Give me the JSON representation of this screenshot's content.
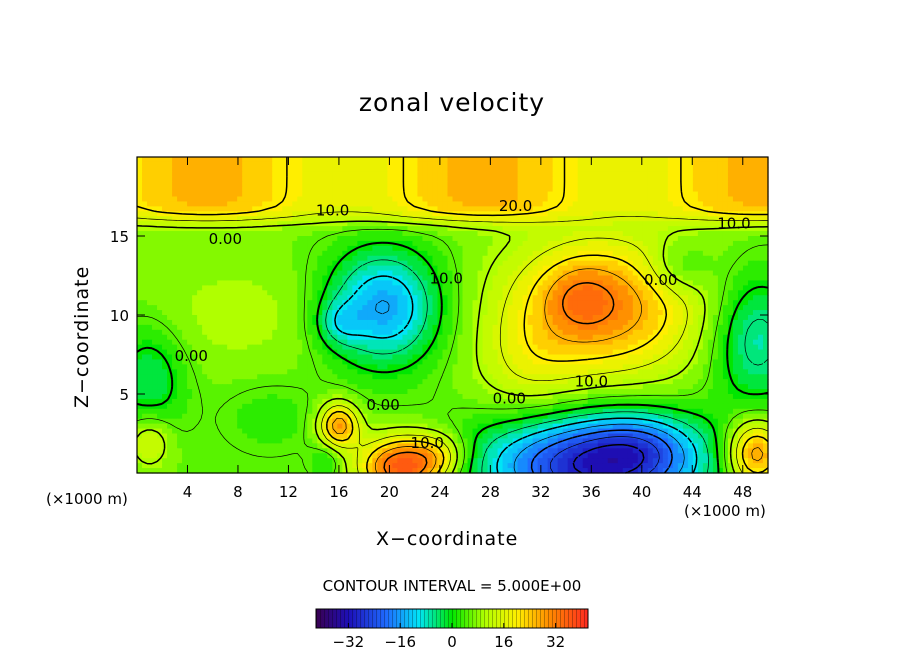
{
  "chart_data": {
    "type": "heatmap",
    "title": "zonal velocity",
    "xlabel": "X−coordinate",
    "ylabel": "Z−coordinate",
    "x_units": "(×1000 m)",
    "xlim": [
      0,
      50
    ],
    "ylim": [
      0,
      20
    ],
    "x_ticks": [
      4,
      8,
      12,
      16,
      20,
      24,
      28,
      32,
      36,
      40,
      44,
      48
    ],
    "y_ticks": [
      5,
      10,
      15
    ],
    "footer": "CONTOUR INTERVAL = 5.000E+00",
    "colorbar": {
      "min": -42,
      "max": 42,
      "tick_values": [
        -32,
        -16,
        0,
        16,
        32
      ],
      "tick_labels": [
        "−32",
        "−16",
        "0",
        "16",
        "32"
      ]
    },
    "contour_labels": [
      {
        "text": "10.0",
        "x": 15.5,
        "z": 16.6
      },
      {
        "text": "20.0",
        "x": 30.0,
        "z": 16.9
      },
      {
        "text": "10.0",
        "x": 47.3,
        "z": 15.8
      },
      {
        "text": "0.00",
        "x": 7.0,
        "z": 14.8
      },
      {
        "text": "10.0",
        "x": 24.5,
        "z": 12.3
      },
      {
        "text": "0.00",
        "x": 41.5,
        "z": 12.2
      },
      {
        "text": "0.00",
        "x": 4.3,
        "z": 7.4
      },
      {
        "text": "10.0",
        "x": 36.0,
        "z": 5.8
      },
      {
        "text": "0.00",
        "x": 19.5,
        "z": 4.3
      },
      {
        "text": "0.00",
        "x": 29.5,
        "z": 4.7
      },
      {
        "text": "10.0",
        "x": 23.0,
        "z": 1.9
      }
    ],
    "features": [
      {
        "x": 37,
        "z": 10.5,
        "sx": 5.5,
        "sz": 3.2,
        "v": 22
      },
      {
        "x": 35,
        "z": 11.2,
        "sx": 2.0,
        "sz": 1.5,
        "v": 6
      },
      {
        "x": 31,
        "z": 6.5,
        "sx": 3.0,
        "sz": 2.5,
        "v": 6
      },
      {
        "x": 19.5,
        "z": 10.5,
        "sx": 3.2,
        "sz": 2.6,
        "v": -22
      },
      {
        "x": 16,
        "z": 9.5,
        "sx": 1.2,
        "sz": 1.0,
        "v": -8
      },
      {
        "x": 21,
        "z": 0.4,
        "sx": 2.3,
        "sz": 1.3,
        "v": 30
      },
      {
        "x": 24,
        "z": 1.2,
        "sx": 1.6,
        "sz": 1.0,
        "v": 10
      },
      {
        "x": 16,
        "z": 3.0,
        "sx": 1.1,
        "sz": 1.0,
        "v": 22
      },
      {
        "x": 15,
        "z": 0.8,
        "sx": 0.9,
        "sz": 0.8,
        "v": -6
      },
      {
        "x": 36,
        "z": 0.5,
        "sx": 6.0,
        "sz": 2.2,
        "v": -36
      },
      {
        "x": 40,
        "z": 1.8,
        "sx": 3.0,
        "sz": 1.5,
        "v": -10
      },
      {
        "x": 49,
        "z": 1.2,
        "sx": 1.6,
        "sz": 1.5,
        "v": 24
      },
      {
        "x": 49,
        "z": 8.5,
        "sx": 2.5,
        "sz": 3.0,
        "v": -14
      },
      {
        "x": 43,
        "z": 13.0,
        "sx": 1.8,
        "sz": 1.2,
        "v": -8
      },
      {
        "x": 1,
        "z": 6.0,
        "sx": 2.0,
        "sz": 2.5,
        "v": -10
      },
      {
        "x": 8,
        "z": 10.0,
        "sx": 6.0,
        "sz": 2.5,
        "v": 4
      },
      {
        "x": 10.5,
        "z": 3.5,
        "sx": 2.5,
        "sz": 1.5,
        "v": -4
      },
      {
        "x": 1,
        "z": 2.0,
        "sx": 1.2,
        "sz": 1.2,
        "v": 10
      },
      {
        "x": 32,
        "z": 19.0,
        "sx": 9.0,
        "sz": 1.2,
        "v": 12
      },
      {
        "x": 24,
        "z": 19.5,
        "sx": 6.0,
        "sz": 0.8,
        "v": 6
      }
    ],
    "top_layer": {
      "z_start": 16.0,
      "base_value": 21,
      "amplitude": 4
    }
  }
}
